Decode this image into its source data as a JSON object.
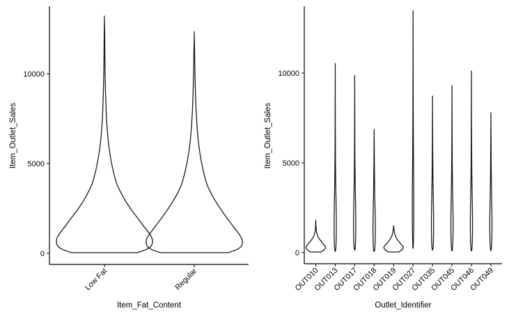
{
  "chart_data": [
    {
      "type": "violin",
      "xlabel": "Item_Fat_Content",
      "ylabel": "Item_Outlet_Sales",
      "ylim": [
        -500,
        13800
      ],
      "yticks": [
        0,
        5000,
        10000
      ],
      "grid": false,
      "categories": [
        "Low Fat",
        "Regular"
      ],
      "violins": [
        {
          "category": "Low Fat",
          "profile": [
            [
              33,
              0.68
            ],
            [
              200,
              0.86
            ],
            [
              400,
              0.97
            ],
            [
              700,
              1.0
            ],
            [
              1000,
              0.96
            ],
            [
              1500,
              0.82
            ],
            [
              2000,
              0.68
            ],
            [
              2500,
              0.54
            ],
            [
              3000,
              0.42
            ],
            [
              3500,
              0.32
            ],
            [
              4000,
              0.24
            ],
            [
              5000,
              0.15
            ],
            [
              6000,
              0.09
            ],
            [
              7000,
              0.055
            ],
            [
              8000,
              0.035
            ],
            [
              9000,
              0.022
            ],
            [
              10000,
              0.014
            ],
            [
              11000,
              0.009
            ],
            [
              12000,
              0.006
            ],
            [
              13087,
              0.0
            ]
          ]
        },
        {
          "category": "Regular",
          "profile": [
            [
              33,
              0.7
            ],
            [
              200,
              0.88
            ],
            [
              400,
              0.98
            ],
            [
              700,
              1.0
            ],
            [
              1000,
              0.95
            ],
            [
              1500,
              0.81
            ],
            [
              2000,
              0.67
            ],
            [
              2500,
              0.54
            ],
            [
              3000,
              0.42
            ],
            [
              3500,
              0.32
            ],
            [
              4000,
              0.245
            ],
            [
              5000,
              0.155
            ],
            [
              6000,
              0.095
            ],
            [
              7000,
              0.06
            ],
            [
              8000,
              0.038
            ],
            [
              9000,
              0.024
            ],
            [
              10000,
              0.015
            ],
            [
              11000,
              0.009
            ],
            [
              12201,
              0.0
            ]
          ]
        }
      ]
    },
    {
      "type": "violin",
      "xlabel": "Outlet_Identifier",
      "ylabel": "Item_Outlet_Sales",
      "ylim": [
        -500,
        13800
      ],
      "yticks": [
        0,
        5000,
        10000
      ],
      "grid": false,
      "categories": [
        "OUT010",
        "OUT013",
        "OUT017",
        "OUT018",
        "OUT019",
        "OUT027",
        "OUT035",
        "OUT045",
        "OUT046",
        "OUT049"
      ],
      "violins": [
        {
          "category": "OUT010",
          "profile": [
            [
              33,
              0.55
            ],
            [
              150,
              0.85
            ],
            [
              300,
              1.0
            ],
            [
              500,
              0.75
            ],
            [
              700,
              0.45
            ],
            [
              900,
              0.22
            ],
            [
              1100,
              0.1
            ],
            [
              1300,
              0.05
            ],
            [
              1500,
              0.02
            ],
            [
              1776,
              0.0
            ]
          ]
        },
        {
          "category": "OUT013",
          "profile": [
            [
              73,
              0.02
            ],
            [
              200,
              0.05
            ],
            [
              400,
              0.08
            ],
            [
              1000,
              0.11
            ],
            [
              2000,
              0.11
            ],
            [
              3000,
              0.08
            ],
            [
              4000,
              0.05
            ],
            [
              5000,
              0.03
            ],
            [
              6000,
              0.018
            ],
            [
              8000,
              0.008
            ],
            [
              10257,
              0.0
            ]
          ]
        },
        {
          "category": "OUT017",
          "profile": [
            [
              143,
              0.02
            ],
            [
              300,
              0.06
            ],
            [
              600,
              0.09
            ],
            [
              1200,
              0.11
            ],
            [
              2000,
              0.11
            ],
            [
              3000,
              0.08
            ],
            [
              4000,
              0.05
            ],
            [
              5000,
              0.03
            ],
            [
              6000,
              0.018
            ],
            [
              8000,
              0.008
            ],
            [
              9664,
              0.0
            ]
          ]
        },
        {
          "category": "OUT018",
          "profile": [
            [
              69,
              0.03
            ],
            [
              250,
              0.07
            ],
            [
              600,
              0.1
            ],
            [
              1200,
              0.12
            ],
            [
              2000,
              0.11
            ],
            [
              3000,
              0.07
            ],
            [
              4000,
              0.045
            ],
            [
              5000,
              0.025
            ],
            [
              6000,
              0.012
            ],
            [
              6768,
              0.0
            ]
          ]
        },
        {
          "category": "OUT019",
          "profile": [
            [
              33,
              0.5
            ],
            [
              150,
              0.85
            ],
            [
              300,
              1.0
            ],
            [
              500,
              0.72
            ],
            [
              700,
              0.42
            ],
            [
              900,
              0.2
            ],
            [
              1100,
              0.09
            ],
            [
              1300,
              0.04
            ],
            [
              1482,
              0.0
            ]
          ]
        },
        {
          "category": "OUT027",
          "profile": [
            [
              242,
              0.015
            ],
            [
              800,
              0.05
            ],
            [
              1500,
              0.07
            ],
            [
              2500,
              0.08
            ],
            [
              3500,
              0.075
            ],
            [
              4500,
              0.055
            ],
            [
              6000,
              0.035
            ],
            [
              8000,
              0.018
            ],
            [
              10000,
              0.009
            ],
            [
              13087,
              0.0
            ]
          ]
        },
        {
          "category": "OUT035",
          "profile": [
            [
              144,
              0.02
            ],
            [
              300,
              0.06
            ],
            [
              600,
              0.09
            ],
            [
              1200,
              0.11
            ],
            [
              2000,
              0.11
            ],
            [
              3000,
              0.08
            ],
            [
              4000,
              0.05
            ],
            [
              5000,
              0.03
            ],
            [
              6500,
              0.015
            ],
            [
              8479,
              0.0
            ]
          ]
        },
        {
          "category": "OUT045",
          "profile": [
            [
              100,
              0.02
            ],
            [
              300,
              0.06
            ],
            [
              600,
              0.09
            ],
            [
              1200,
              0.11
            ],
            [
              2000,
              0.11
            ],
            [
              3000,
              0.08
            ],
            [
              4000,
              0.05
            ],
            [
              5000,
              0.03
            ],
            [
              6500,
              0.015
            ],
            [
              8994,
              0.0
            ]
          ]
        },
        {
          "category": "OUT046",
          "profile": [
            [
              100,
              0.02
            ],
            [
              300,
              0.06
            ],
            [
              600,
              0.09
            ],
            [
              1200,
              0.11
            ],
            [
              2000,
              0.11
            ],
            [
              3000,
              0.08
            ],
            [
              4000,
              0.05
            ],
            [
              5000,
              0.03
            ],
            [
              7000,
              0.013
            ],
            [
              9779,
              0.0
            ]
          ]
        },
        {
          "category": "OUT049",
          "profile": [
            [
              112,
              0.02
            ],
            [
              300,
              0.06
            ],
            [
              600,
              0.09
            ],
            [
              1200,
              0.11
            ],
            [
              2000,
              0.11
            ],
            [
              3000,
              0.08
            ],
            [
              4000,
              0.05
            ],
            [
              5000,
              0.03
            ],
            [
              6500,
              0.012
            ],
            [
              7646,
              0.0
            ]
          ]
        }
      ]
    }
  ]
}
